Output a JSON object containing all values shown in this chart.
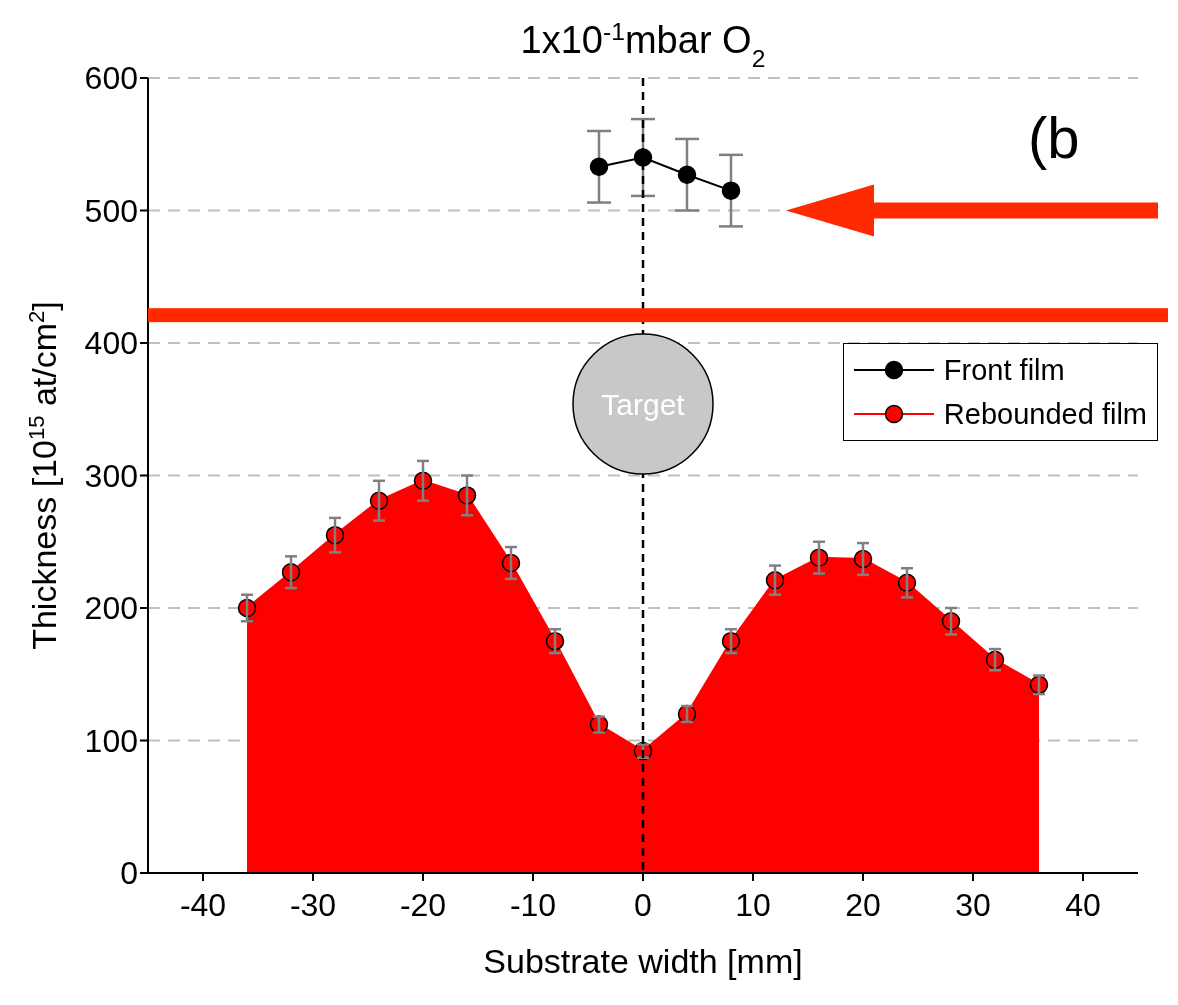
{
  "chart_data": {
    "type": "line",
    "title": "1x10$^{-1}$mbar O$_{2}$",
    "xlabel": "Substrate width [mm]",
    "ylabel": "Thickness [10$^{15}$ at/cm$^{2}$]",
    "xlim": [
      -45,
      45
    ],
    "xticks": [
      -40,
      -30,
      -20,
      -10,
      0,
      10,
      20,
      30,
      40
    ],
    "ylim": [
      0,
      600
    ],
    "yticks": [
      0,
      100,
      200,
      300,
      400,
      500,
      600
    ],
    "grid": "y",
    "legend": "right",
    "marker": "circle",
    "ref_lines": [
      {
        "axis": "x",
        "value": 0,
        "color": "#000000",
        "line_style": "dashed"
      }
    ],
    "annotations": [
      {
        "text": "Target",
        "x": 0,
        "y": 354
      },
      "(b"
    ],
    "series": [
      {
        "name": "Front film",
        "type": "line",
        "color": "#000000",
        "x": [
          -4,
          0,
          4,
          8
        ],
        "values": [
          533,
          540,
          527,
          515
        ],
        "errors": [
          27,
          29,
          27,
          27
        ]
      },
      {
        "name": "Rebounded film",
        "type": "area",
        "color": "#ff0000",
        "x": [
          -36,
          -32,
          -28,
          -24,
          -20,
          -16,
          -12,
          -8,
          -4,
          0,
          4,
          8,
          12,
          16,
          20,
          24,
          28,
          32,
          36
        ],
        "values": [
          200,
          227,
          255,
          281,
          296,
          285,
          234,
          175,
          112,
          92,
          120,
          175,
          221,
          238,
          237,
          219,
          190,
          161,
          142
        ],
        "errors": [
          10,
          12,
          13,
          15,
          15,
          15,
          12,
          9,
          6,
          5,
          6,
          9,
          11,
          12,
          12,
          11,
          10,
          8,
          7
        ]
      }
    ]
  }
}
